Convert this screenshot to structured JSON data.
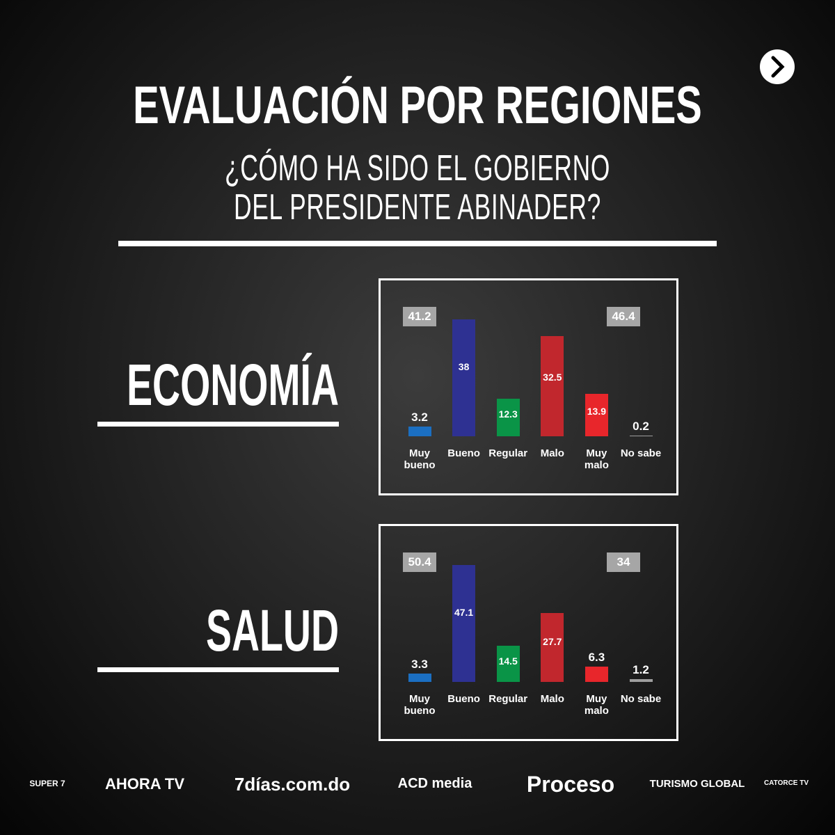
{
  "header": {
    "title": "EVALUACIÓN POR REGIONES",
    "subtitle": [
      "¿CÓMO HA SIDO EL GOBIERNO",
      "DEL PRESIDENTE ABINADER?"
    ]
  },
  "chart_data": [
    {
      "type": "bar",
      "title": "ECONOMÍA",
      "categories": [
        "Muy bueno",
        "Bueno",
        "Regular",
        "Malo",
        "Muy malo",
        "No sabe"
      ],
      "values": [
        3.2,
        38,
        12.3,
        32.5,
        13.9,
        0.2
      ],
      "colors": [
        "#1b6fc2",
        "#2e3192",
        "#0a9447",
        "#c1272d",
        "#e8262b",
        "#9e9e9e"
      ],
      "annotations": [
        41.2,
        46.4
      ]
    },
    {
      "type": "bar",
      "title": "SALUD",
      "categories": [
        "Muy bueno",
        "Bueno",
        "Regular",
        "Malo",
        "Muy malo",
        "No sabe"
      ],
      "values": [
        3.3,
        47.1,
        14.5,
        27.7,
        6.3,
        1.2
      ],
      "colors": [
        "#1b6fc2",
        "#2e3192",
        "#0a9447",
        "#c1272d",
        "#e8262b",
        "#9e9e9e"
      ],
      "annotations": [
        50.4,
        34
      ]
    }
  ],
  "logos": [
    "SUPER 7",
    "AHORA TV",
    "7días.com.do",
    "ACD media",
    "Proceso",
    "TURISMO GLOBAL",
    "CATORCE TV"
  ]
}
